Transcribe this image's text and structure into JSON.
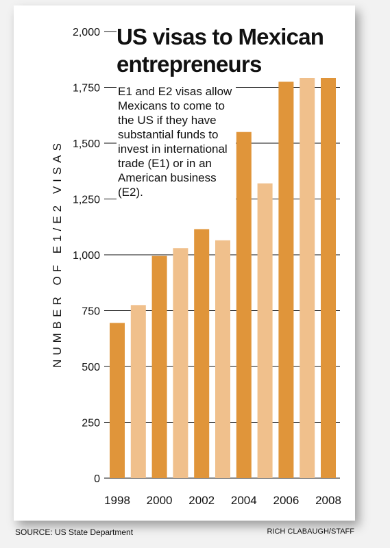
{
  "chart_data": {
    "type": "bar",
    "title": "US visas to Mexican entrepreneurs",
    "description": "E1 and E2 visas allow Mexicans to come to the US if they have substantial funds to invest in international trade (E1) or in an American business (E2).",
    "ylabel": "NUMBER OF E1/E2 VISAS",
    "xlabel": "",
    "ylim": [
      0,
      2000
    ],
    "y_ticks": [
      0,
      250,
      500,
      750,
      1000,
      1250,
      1500,
      1750,
      2000
    ],
    "y_tick_labels": [
      "0",
      "250",
      "500",
      "750",
      "1,000",
      "1,250",
      "1,500",
      "1,750",
      "2,000"
    ],
    "categories": [
      "1998",
      "1999",
      "2000",
      "2001",
      "2002",
      "2003",
      "2004",
      "2005",
      "2006",
      "2007",
      "2008"
    ],
    "x_tick_labels": [
      "1998",
      "2000",
      "2002",
      "2004",
      "2006",
      "2008"
    ],
    "values": [
      695,
      775,
      995,
      1030,
      1115,
      1065,
      1550,
      1320,
      1775,
      1870,
      1900
    ],
    "colors": {
      "even_year_bar": "#e0953a",
      "odd_year_bar": "#f0c08c",
      "gridline": "#111111"
    },
    "grid": true,
    "legend": "none"
  },
  "footer": {
    "source": "SOURCE: US State Department",
    "credit": "RICH CLABAUGH/STAFF"
  }
}
